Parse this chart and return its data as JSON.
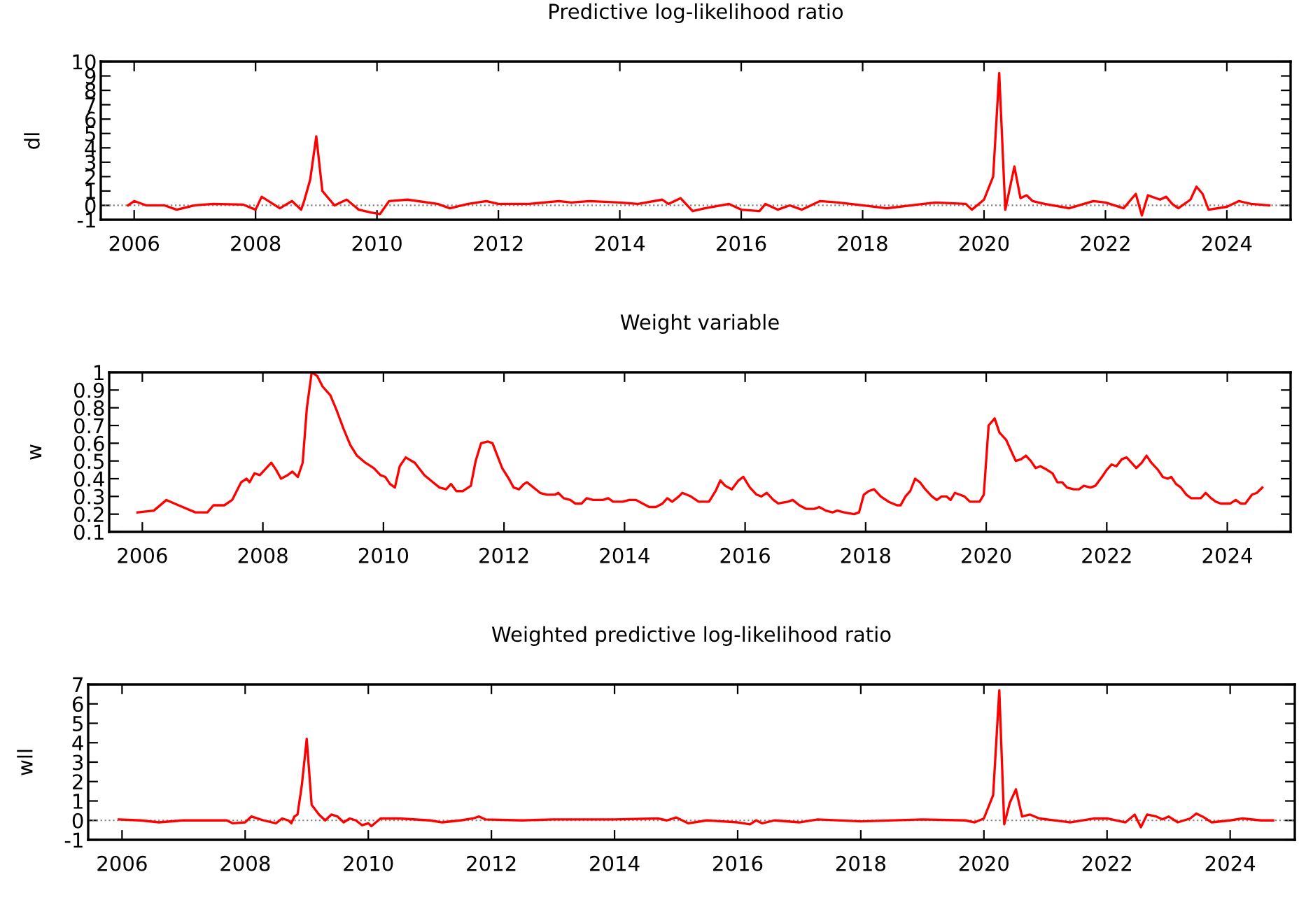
{
  "chart_data": [
    {
      "type": "line",
      "title": "Predictive log-likelihood ratio",
      "ylabel": "dl",
      "xlim": [
        2005.45,
        2025.05
      ],
      "xticks": [
        2006,
        2008,
        2010,
        2012,
        2014,
        2016,
        2018,
        2020,
        2022,
        2024
      ],
      "ylim": [
        -1,
        10
      ],
      "yticks": [
        -1,
        0,
        1,
        2,
        3,
        4,
        5,
        6,
        7,
        8,
        9,
        10
      ],
      "grid": false,
      "legend": false,
      "marker": "none",
      "line_style": "solid",
      "ref_lines": [
        {
          "axis": "y",
          "value": 0,
          "color": "#808080",
          "line_style": "dotted"
        }
      ],
      "series": [
        {
          "color": "#ff0000",
          "x": [
            2005.9,
            2006.0,
            2006.2,
            2006.5,
            2006.7,
            2007.0,
            2007.3,
            2007.8,
            2008.0,
            2008.1,
            2008.4,
            2008.6,
            2008.75,
            2008.8,
            2008.9,
            2009.0,
            2009.1,
            2009.3,
            2009.5,
            2009.7,
            2009.9,
            2010.05,
            2010.2,
            2010.5,
            2011.0,
            2011.2,
            2011.5,
            2011.8,
            2012.0,
            2012.5,
            2013.0,
            2013.2,
            2013.5,
            2014.0,
            2014.3,
            2014.7,
            2014.8,
            2015.0,
            2015.2,
            2015.4,
            2015.8,
            2016.0,
            2016.3,
            2016.4,
            2016.6,
            2016.8,
            2017.0,
            2017.3,
            2017.6,
            2018.0,
            2018.4,
            2019.0,
            2019.2,
            2019.7,
            2019.8,
            2020.0,
            2020.15,
            2020.25,
            2020.35,
            2020.5,
            2020.6,
            2020.7,
            2020.8,
            2021.0,
            2021.4,
            2021.8,
            2022.0,
            2022.3,
            2022.5,
            2022.6,
            2022.7,
            2022.9,
            2023.0,
            2023.1,
            2023.2,
            2023.4,
            2023.5,
            2023.6,
            2023.7,
            2024.0,
            2024.2,
            2024.4,
            2024.7
          ],
          "values": [
            0.0,
            0.3,
            0.0,
            0.0,
            -0.3,
            0.0,
            0.1,
            0.05,
            -0.3,
            0.6,
            -0.2,
            0.3,
            -0.3,
            0.3,
            1.8,
            4.8,
            1.0,
            0.0,
            0.4,
            -0.3,
            -0.5,
            -0.6,
            0.3,
            0.4,
            0.1,
            -0.2,
            0.1,
            0.3,
            0.1,
            0.1,
            0.3,
            0.2,
            0.3,
            0.2,
            0.1,
            0.4,
            0.1,
            0.5,
            -0.4,
            -0.2,
            0.1,
            -0.3,
            -0.4,
            0.1,
            -0.3,
            0.0,
            -0.3,
            0.3,
            0.2,
            0.0,
            -0.2,
            0.1,
            0.2,
            0.1,
            -0.3,
            0.4,
            2.0,
            9.2,
            -0.3,
            2.7,
            0.5,
            0.7,
            0.3,
            0.1,
            -0.2,
            0.3,
            0.2,
            -0.2,
            0.8,
            -0.7,
            0.7,
            0.4,
            0.6,
            0.1,
            -0.2,
            0.4,
            1.3,
            0.8,
            -0.3,
            -0.1,
            0.3,
            0.1,
            0.0
          ]
        }
      ]
    },
    {
      "type": "line",
      "title": "Weight variable",
      "ylabel": "w",
      "xlim": [
        2005.45,
        2025.05
      ],
      "xticks": [
        2006,
        2008,
        2010,
        2012,
        2014,
        2016,
        2018,
        2020,
        2022,
        2024
      ],
      "ylim": [
        0.1,
        1
      ],
      "yticks": [
        0.1,
        0.2,
        0.3,
        0.4,
        0.5,
        0.6,
        0.7,
        0.8,
        0.9,
        1
      ],
      "grid": false,
      "legend": false,
      "marker": "none",
      "line_style": "solid",
      "series": [
        {
          "color": "#ff0000",
          "x": [
            2005.92,
            2006.19,
            2006.4,
            2006.6,
            2006.88,
            2007.08,
            2007.18,
            2007.36,
            2007.49,
            2007.64,
            2007.73,
            2007.78,
            2007.86,
            2007.95,
            2008.03,
            2008.14,
            2008.22,
            2008.3,
            2008.41,
            2008.49,
            2008.58,
            2008.66,
            2008.73,
            2008.81,
            2008.9,
            2008.99,
            2009.12,
            2009.23,
            2009.34,
            2009.45,
            2009.56,
            2009.7,
            2009.84,
            2009.95,
            2010.03,
            2010.11,
            2010.19,
            2010.27,
            2010.37,
            2010.52,
            2010.68,
            2010.82,
            2010.93,
            2011.04,
            2011.12,
            2011.21,
            2011.32,
            2011.45,
            2011.53,
            2011.62,
            2011.73,
            2011.81,
            2011.89,
            2011.97,
            2012.08,
            2012.16,
            2012.25,
            2012.33,
            2012.38,
            2012.49,
            2012.6,
            2012.71,
            2012.85,
            2012.9,
            2012.99,
            2013.1,
            2013.18,
            2013.29,
            2013.37,
            2013.48,
            2013.64,
            2013.73,
            2013.81,
            2013.97,
            2014.08,
            2014.19,
            2014.3,
            2014.41,
            2014.52,
            2014.63,
            2014.71,
            2014.79,
            2014.9,
            2014.96,
            2015.1,
            2015.23,
            2015.4,
            2015.51,
            2015.59,
            2015.67,
            2015.78,
            2015.89,
            2015.97,
            2016.08,
            2016.19,
            2016.27,
            2016.36,
            2016.47,
            2016.55,
            2016.71,
            2016.79,
            2016.9,
            2017.01,
            2017.15,
            2017.23,
            2017.34,
            2017.45,
            2017.53,
            2017.64,
            2017.81,
            2017.89,
            2017.97,
            2018.05,
            2018.14,
            2018.25,
            2018.38,
            2018.52,
            2018.58,
            2018.66,
            2018.74,
            2018.82,
            2018.9,
            2018.99,
            2019.1,
            2019.18,
            2019.26,
            2019.34,
            2019.41,
            2019.48,
            2019.56,
            2019.64,
            2019.73,
            2019.89,
            2019.96,
            2020.04,
            2020.14,
            2020.22,
            2020.33,
            2020.41,
            2020.49,
            2020.58,
            2020.66,
            2020.74,
            2020.82,
            2020.9,
            2021.01,
            2021.1,
            2021.18,
            2021.26,
            2021.34,
            2021.45,
            2021.54,
            2021.62,
            2021.73,
            2021.81,
            2021.92,
            2022.0,
            2022.08,
            2022.16,
            2022.25,
            2022.33,
            2022.41,
            2022.49,
            2022.58,
            2022.66,
            2022.74,
            2022.85,
            2022.93,
            2023.01,
            2023.07,
            2023.15,
            2023.23,
            2023.32,
            2023.4,
            2023.56,
            2023.64,
            2023.73,
            2023.81,
            2023.89,
            2024.05,
            2024.14,
            2024.22,
            2024.3,
            2024.41,
            2024.49,
            2024.58
          ],
          "values": [
            0.21,
            0.22,
            0.28,
            0.25,
            0.21,
            0.21,
            0.25,
            0.25,
            0.28,
            0.38,
            0.4,
            0.38,
            0.43,
            0.42,
            0.45,
            0.49,
            0.45,
            0.4,
            0.42,
            0.44,
            0.41,
            0.49,
            0.8,
            1.0,
            0.98,
            0.92,
            0.87,
            0.78,
            0.68,
            0.59,
            0.53,
            0.49,
            0.46,
            0.42,
            0.41,
            0.37,
            0.35,
            0.47,
            0.52,
            0.49,
            0.42,
            0.38,
            0.35,
            0.34,
            0.37,
            0.33,
            0.33,
            0.36,
            0.5,
            0.6,
            0.61,
            0.6,
            0.53,
            0.46,
            0.4,
            0.35,
            0.34,
            0.37,
            0.38,
            0.35,
            0.32,
            0.31,
            0.31,
            0.32,
            0.29,
            0.28,
            0.26,
            0.26,
            0.29,
            0.28,
            0.28,
            0.29,
            0.27,
            0.27,
            0.28,
            0.28,
            0.26,
            0.24,
            0.24,
            0.26,
            0.29,
            0.27,
            0.3,
            0.32,
            0.3,
            0.27,
            0.27,
            0.33,
            0.39,
            0.36,
            0.34,
            0.39,
            0.41,
            0.35,
            0.31,
            0.3,
            0.32,
            0.28,
            0.26,
            0.27,
            0.28,
            0.25,
            0.23,
            0.23,
            0.24,
            0.22,
            0.21,
            0.22,
            0.21,
            0.2,
            0.21,
            0.31,
            0.33,
            0.34,
            0.3,
            0.27,
            0.25,
            0.25,
            0.3,
            0.33,
            0.4,
            0.38,
            0.34,
            0.3,
            0.28,
            0.3,
            0.3,
            0.28,
            0.32,
            0.31,
            0.3,
            0.27,
            0.27,
            0.31,
            0.7,
            0.74,
            0.66,
            0.62,
            0.56,
            0.5,
            0.51,
            0.53,
            0.5,
            0.46,
            0.47,
            0.45,
            0.43,
            0.38,
            0.38,
            0.35,
            0.34,
            0.34,
            0.36,
            0.35,
            0.36,
            0.41,
            0.45,
            0.48,
            0.47,
            0.51,
            0.52,
            0.49,
            0.46,
            0.49,
            0.53,
            0.49,
            0.45,
            0.41,
            0.4,
            0.41,
            0.37,
            0.35,
            0.31,
            0.29,
            0.29,
            0.32,
            0.29,
            0.27,
            0.26,
            0.26,
            0.28,
            0.26,
            0.26,
            0.31,
            0.32,
            0.35
          ]
        }
      ]
    },
    {
      "type": "line",
      "title": "Weighted predictive log-likelihood ratio",
      "ylabel": "wll",
      "xlim": [
        2005.45,
        2025.05
      ],
      "xticks": [
        2006,
        2008,
        2010,
        2012,
        2014,
        2016,
        2018,
        2020,
        2022,
        2024
      ],
      "ylim": [
        -1,
        7
      ],
      "yticks": [
        -1,
        0,
        1,
        2,
        3,
        4,
        5,
        6,
        7
      ],
      "grid": false,
      "legend": false,
      "marker": "none",
      "line_style": "solid",
      "ref_lines": [
        {
          "axis": "y",
          "value": 0,
          "color": "#808080",
          "line_style": "dotted"
        }
      ],
      "series": [
        {
          "color": "#ff0000",
          "x": [
            2005.95,
            2006.3,
            2006.6,
            2007.0,
            2007.7,
            2007.8,
            2008.0,
            2008.1,
            2008.3,
            2008.5,
            2008.6,
            2008.7,
            2008.75,
            2008.8,
            2008.85,
            2008.92,
            2009.0,
            2009.08,
            2009.2,
            2009.3,
            2009.4,
            2009.5,
            2009.6,
            2009.7,
            2009.8,
            2009.9,
            2010.0,
            2010.05,
            2010.2,
            2010.5,
            2011.0,
            2011.2,
            2011.5,
            2011.7,
            2011.8,
            2011.9,
            2012.5,
            2013.0,
            2014.0,
            2014.7,
            2014.85,
            2015.0,
            2015.2,
            2015.5,
            2016.0,
            2016.2,
            2016.3,
            2016.4,
            2016.6,
            2017.0,
            2017.3,
            2018.0,
            2019.0,
            2019.7,
            2019.85,
            2020.0,
            2020.15,
            2020.25,
            2020.33,
            2020.42,
            2020.52,
            2020.62,
            2020.75,
            2020.9,
            2021.4,
            2021.8,
            2022.0,
            2022.3,
            2022.45,
            2022.55,
            2022.65,
            2022.8,
            2022.9,
            2023.0,
            2023.15,
            2023.35,
            2023.45,
            2023.55,
            2023.7,
            2024.0,
            2024.2,
            2024.5,
            2024.7
          ],
          "values": [
            0.05,
            0.0,
            -0.1,
            0.0,
            0.0,
            -0.15,
            -0.1,
            0.2,
            0.0,
            -0.15,
            0.1,
            0.0,
            -0.15,
            0.2,
            0.3,
            1.8,
            4.2,
            0.8,
            0.3,
            0.0,
            0.3,
            0.2,
            -0.1,
            0.1,
            0.0,
            -0.25,
            -0.15,
            -0.3,
            0.1,
            0.1,
            0.0,
            -0.1,
            0.0,
            0.1,
            0.2,
            0.05,
            0.0,
            0.05,
            0.05,
            0.1,
            0.0,
            0.15,
            -0.15,
            0.0,
            -0.1,
            -0.2,
            0.0,
            -0.15,
            0.0,
            -0.1,
            0.05,
            -0.05,
            0.05,
            0.0,
            -0.1,
            0.1,
            1.3,
            6.7,
            -0.2,
            0.9,
            1.6,
            0.2,
            0.3,
            0.1,
            -0.1,
            0.1,
            0.1,
            -0.1,
            0.3,
            -0.35,
            0.3,
            0.2,
            0.05,
            0.2,
            -0.1,
            0.1,
            0.35,
            0.2,
            -0.1,
            0.0,
            0.1,
            0.0,
            0.0
          ]
        }
      ]
    }
  ]
}
